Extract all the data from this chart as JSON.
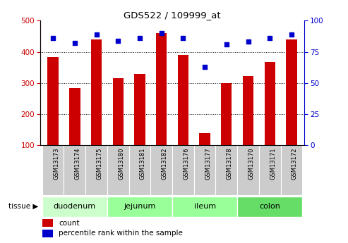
{
  "title": "GDS522 / 109999_at",
  "samples": [
    "GSM13173",
    "GSM13174",
    "GSM13175",
    "GSM13180",
    "GSM13181",
    "GSM13182",
    "GSM13176",
    "GSM13177",
    "GSM13178",
    "GSM13170",
    "GSM13171",
    "GSM13172"
  ],
  "counts": [
    383,
    283,
    440,
    315,
    330,
    460,
    390,
    140,
    300,
    323,
    368,
    440
  ],
  "percentiles": [
    86,
    82,
    89,
    84,
    86,
    90,
    86,
    63,
    81,
    83,
    86,
    89
  ],
  "tissues": [
    {
      "label": "duodenum",
      "start": 0,
      "end": 3
    },
    {
      "label": "jejunum",
      "start": 3,
      "end": 6
    },
    {
      "label": "ileum",
      "start": 6,
      "end": 9
    },
    {
      "label": "colon",
      "start": 9,
      "end": 12
    }
  ],
  "tissue_colors": {
    "duodenum": "#ccffcc",
    "jejunum": "#99ff99",
    "ileum": "#99ff99",
    "colon": "#66dd66"
  },
  "ylim_left": [
    100,
    500
  ],
  "ylim_right": [
    0,
    100
  ],
  "yticks_left": [
    100,
    200,
    300,
    400,
    500
  ],
  "yticks_right": [
    0,
    25,
    50,
    75,
    100
  ],
  "bar_color": "#cc0000",
  "dot_color": "#0000cc",
  "background_color": "#ffffff",
  "sample_bg_color": "#cccccc",
  "border_color": "#aaaaaa"
}
